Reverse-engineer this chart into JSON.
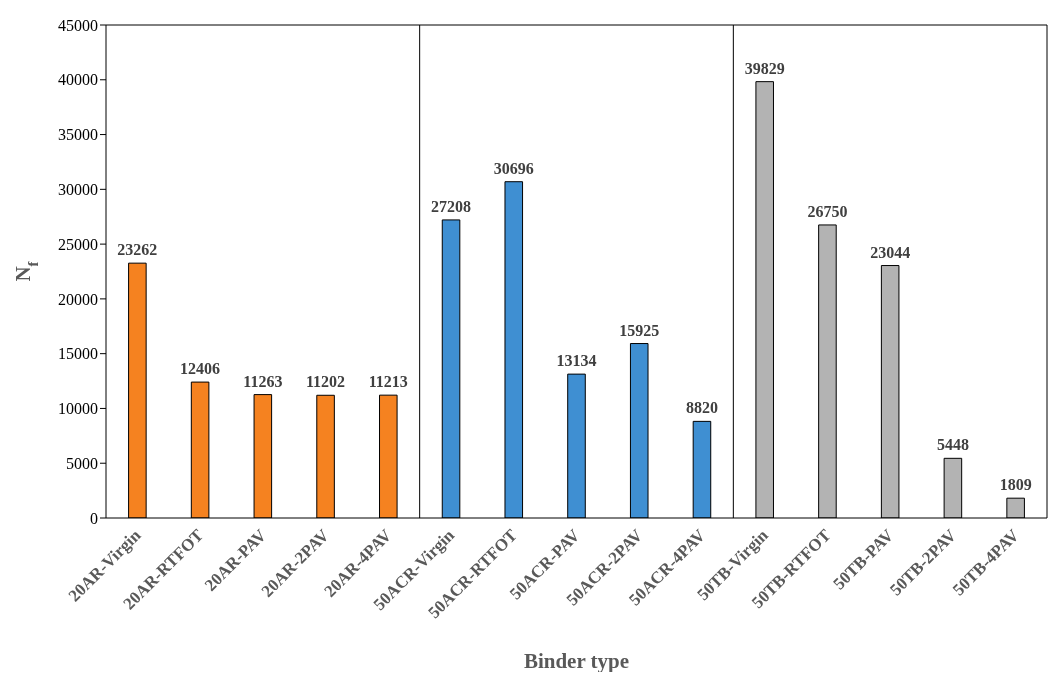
{
  "chart_data": {
    "type": "bar",
    "xlabel": "Binder type",
    "ylabel": "N$_{f}$",
    "categories": [
      "20AR-Virgin",
      "20AR-RTFOT",
      "20AR-PAV",
      "20AR-2PAV",
      "20AR-4PAV",
      "50ACR-Virgin",
      "50ACR-RTFOT",
      "50ACR-PAV",
      "50ACR-2PAV",
      "50ACR-4PAV",
      "50TB-Virgin",
      "50TB-RTFOT",
      "50TB-PAV",
      "50TB-2PAV",
      "50TB-4PAV"
    ],
    "values": [
      23262,
      12406,
      11263,
      11202,
      11213,
      27208,
      30696,
      13134,
      15925,
      8820,
      39829,
      26750,
      23044,
      5448,
      1809
    ],
    "colors": [
      "#f58220",
      "#f58220",
      "#f58220",
      "#f58220",
      "#f58220",
      "#3f8fd2",
      "#3f8fd2",
      "#3f8fd2",
      "#3f8fd2",
      "#3f8fd2",
      "#b3b3b3",
      "#b3b3b3",
      "#b3b3b3",
      "#b3b3b3",
      "#b3b3b3"
    ],
    "ylim": [
      0,
      45000
    ],
    "yticks": [
      0,
      5000,
      10000,
      15000,
      20000,
      25000,
      30000,
      35000,
      40000,
      45000
    ],
    "data_labels": true,
    "grid": false,
    "legend": false
  }
}
